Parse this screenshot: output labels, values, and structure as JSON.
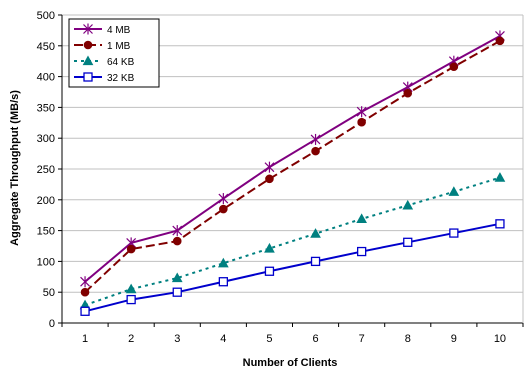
{
  "chart_data": {
    "type": "line",
    "title": "",
    "xlabel": "Number of Clients",
    "ylabel": "Aggregate Throughput (MB/s)",
    "categories": [
      "1",
      "2",
      "3",
      "4",
      "5",
      "6",
      "7",
      "8",
      "9",
      "10"
    ],
    "ylim": [
      0,
      500
    ],
    "yticks": [
      "0",
      "50",
      "100",
      "150",
      "200",
      "250",
      "300",
      "350",
      "400",
      "450",
      "500"
    ],
    "grid": "horizontal",
    "legend_position": "top-left",
    "series": [
      {
        "name": "4 MB",
        "values": [
          67,
          130,
          150,
          202,
          253,
          298,
          343,
          383,
          425,
          466
        ],
        "color": "#800080",
        "marker": "asterisk",
        "dash": "solid"
      },
      {
        "name": "1 MB",
        "values": [
          50,
          120,
          133,
          185,
          234,
          279,
          326,
          373,
          416,
          458
        ],
        "color": "#800000",
        "marker": "circle",
        "dash": "dashed"
      },
      {
        "name": "64 KB",
        "values": [
          29,
          55,
          73,
          97,
          121,
          145,
          169,
          191,
          213,
          236
        ],
        "color": "#008080",
        "marker": "triangle",
        "dash": "dotted"
      },
      {
        "name": "32 KB",
        "values": [
          19,
          38,
          50,
          67,
          84,
          100,
          116,
          131,
          146,
          161
        ],
        "color": "#0000cc",
        "marker": "square",
        "dash": "solid"
      }
    ]
  }
}
